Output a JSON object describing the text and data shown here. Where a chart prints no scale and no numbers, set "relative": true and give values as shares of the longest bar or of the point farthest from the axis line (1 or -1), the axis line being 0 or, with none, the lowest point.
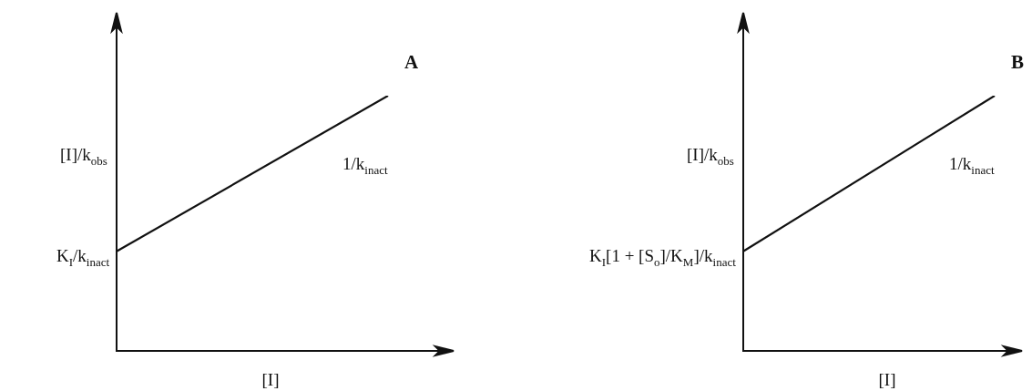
{
  "chart_data": [
    {
      "type": "line",
      "title": "A",
      "xlabel": "[I]",
      "ylabel": "[I]/k$_{obs}$",
      "relative": true,
      "marker": "none",
      "categories": [
        null,
        null
      ],
      "series": [
        {
          "color": "#111111",
          "values": [
            0.39,
            1
          ]
        }
      ],
      "annotations": [
        "K$_{I}$/k$_{inact}$",
        "1/k$_{inact}$"
      ]
    },
    {
      "type": "line",
      "title": "B",
      "xlabel": "[I]",
      "ylabel": "[I]/k$_{obs}$",
      "relative": true,
      "marker": "none",
      "categories": [
        null,
        null
      ],
      "series": [
        {
          "color": "#111111",
          "values": [
            0.39,
            1
          ]
        }
      ],
      "annotations": [
        "K$_{I}$[1 + [S$_{o}$]/K$_{M}$]/k$_{inact}$",
        "1/k$_{inact}$"
      ]
    }
  ]
}
